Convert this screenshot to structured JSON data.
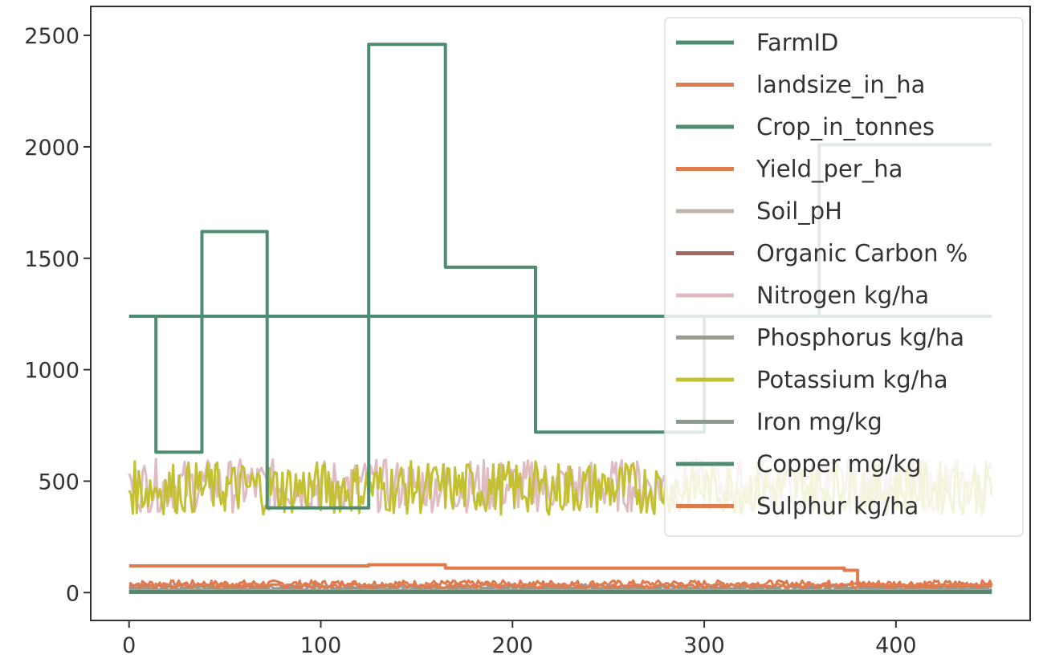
{
  "chart_data": {
    "type": "line",
    "title": "",
    "xlabel": "",
    "ylabel": "",
    "xlim": [
      -20,
      470
    ],
    "ylim": [
      -125,
      2630
    ],
    "xticks": [
      0,
      100,
      200,
      300,
      400
    ],
    "yticks": [
      0,
      500,
      1000,
      1500,
      2000,
      2500
    ],
    "grid": false,
    "legend_position": "upper right",
    "series": [
      {
        "name": "FarmID",
        "color": "#4e8c72",
        "kind": "step",
        "x": [
          0,
          14,
          14,
          38,
          38,
          72,
          72,
          125,
          125,
          165,
          165,
          212,
          212,
          300,
          300,
          360,
          360,
          450
        ],
        "y": [
          1240,
          1240,
          630,
          630,
          1620,
          1620,
          380,
          380,
          2460,
          2460,
          1460,
          1460,
          720,
          720,
          1240,
          1240,
          2010,
          2010
        ]
      },
      {
        "name": "landsize_in_ha",
        "color": "#e07a4f",
        "kind": "step",
        "x": [
          0,
          125,
          125,
          165,
          165,
          373,
          373,
          380,
          380,
          450
        ],
        "y": [
          120,
          120,
          125,
          125,
          110,
          110,
          100,
          100,
          30,
          30
        ]
      },
      {
        "name": "Crop_in_tonnes",
        "color": "#4e8c72",
        "kind": "flat",
        "x": [
          0,
          450
        ],
        "y": [
          1240,
          1240
        ]
      },
      {
        "name": "Yield_per_ha",
        "color": "#e07a4f",
        "kind": "noise",
        "x": [
          0,
          450
        ],
        "base": 40,
        "amp": 15
      },
      {
        "name": "Soil_pH",
        "color": "#bdb5ad",
        "kind": "flat",
        "x": [
          0,
          450
        ],
        "y": [
          7,
          7
        ]
      },
      {
        "name": "Organic Carbon %",
        "color": "#a0685e",
        "kind": "flat",
        "x": [
          0,
          450
        ],
        "y": [
          1,
          1
        ]
      },
      {
        "name": "Nitrogen kg/ha",
        "color": "#dfbcc2",
        "kind": "noise",
        "x": [
          0,
          450
        ],
        "base": 480,
        "amp": 120
      },
      {
        "name": "Phosphorus kg/ha",
        "color": "#9a9a90",
        "kind": "noise",
        "x": [
          0,
          450
        ],
        "base": 25,
        "amp": 8
      },
      {
        "name": "Potassium kg/ha",
        "color": "#c4c034",
        "kind": "noise",
        "x": [
          0,
          450
        ],
        "base": 470,
        "amp": 120
      },
      {
        "name": "Iron mg/kg",
        "color": "#8a9a8e",
        "kind": "noise",
        "x": [
          0,
          450
        ],
        "base": 15,
        "amp": 6
      },
      {
        "name": "Copper mg/kg",
        "color": "#4e8c72",
        "kind": "flat",
        "x": [
          0,
          450
        ],
        "y": [
          5,
          5
        ]
      },
      {
        "name": "Sulphur kg/ha",
        "color": "#e07a4f",
        "kind": "noise",
        "x": [
          0,
          450
        ],
        "base": 30,
        "amp": 10
      }
    ]
  }
}
